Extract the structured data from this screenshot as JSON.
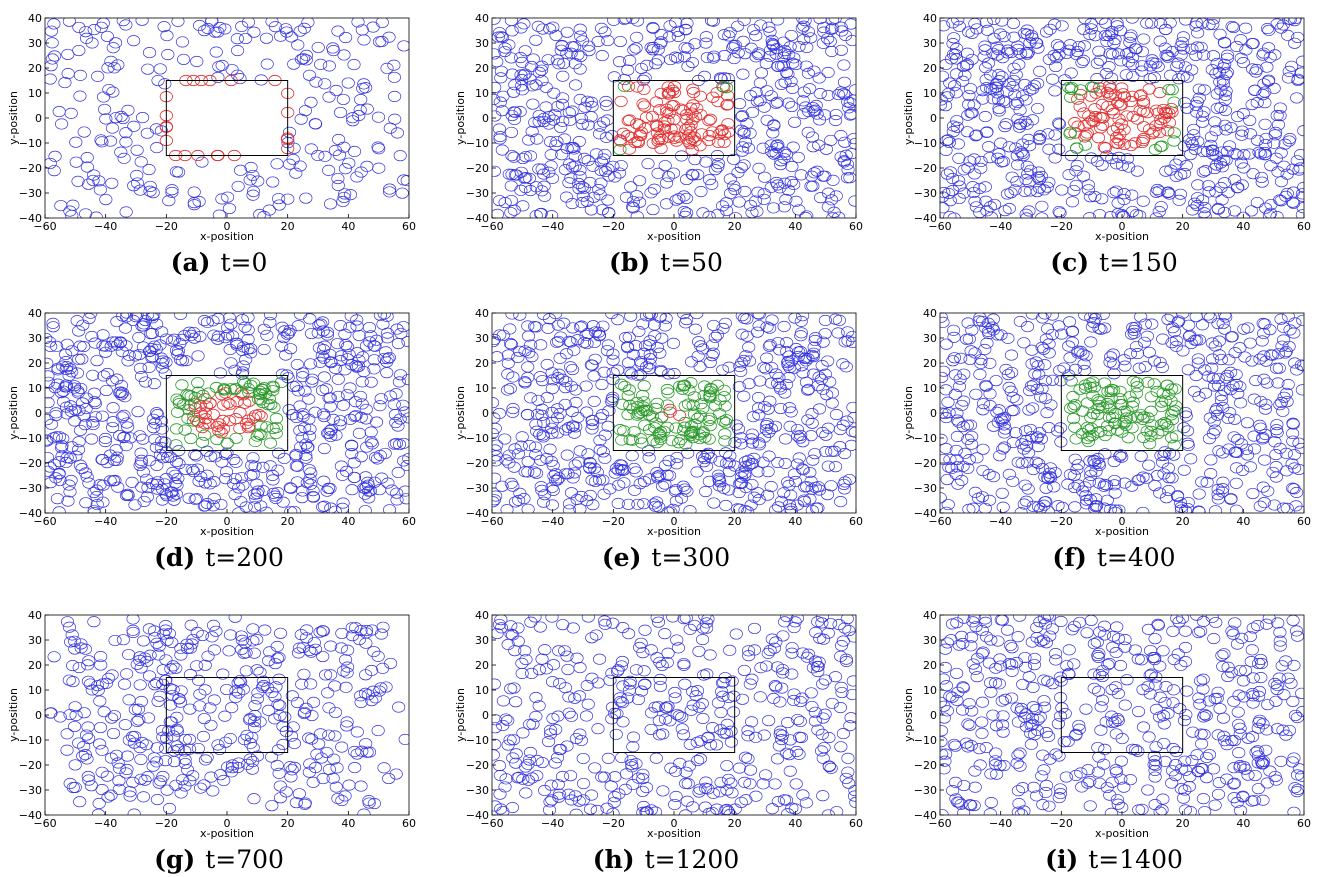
{
  "colors": {
    "outside": "#3333dd",
    "inside_initial": "#e03030",
    "inside_settled": "#2a9a2a",
    "region": "#000000"
  },
  "chart_data": [
    {
      "type": "scatter",
      "panel": "(a)",
      "caption": "t=0",
      "xlabel": "x-position",
      "ylabel": "y-position",
      "xlim": [
        -60,
        60
      ],
      "ylim": [
        -40,
        40
      ],
      "xticks": [
        "−60",
        "−40",
        "−20",
        "0",
        "20",
        "40",
        "60"
      ],
      "yticks": [
        "−40",
        "−30",
        "−20",
        "−10",
        "0",
        "10",
        "20",
        "30",
        "40"
      ],
      "region": {
        "x": [
          -20,
          20
        ],
        "y": [
          -15,
          15
        ]
      },
      "approx_particles": {
        "outside": 260,
        "inside_red": 22,
        "inside_green": 0,
        "inside_mode": "border"
      }
    },
    {
      "type": "scatter",
      "panel": "(b)",
      "caption": "t=50",
      "xlabel": "x-position",
      "ylabel": "y-position",
      "xlim": [
        -60,
        60
      ],
      "ylim": [
        -40,
        40
      ],
      "xticks": [
        "−60",
        "−40",
        "−20",
        "0",
        "20",
        "40",
        "60"
      ],
      "yticks": [
        "−40",
        "−30",
        "−20",
        "−10",
        "0",
        "10",
        "20",
        "30",
        "40"
      ],
      "region": {
        "x": [
          -20,
          20
        ],
        "y": [
          -15,
          15
        ]
      },
      "approx_particles": {
        "outside": 560,
        "inside_red": 110,
        "inside_green": 4,
        "inside_mode": "fill"
      }
    },
    {
      "type": "scatter",
      "panel": "(c)",
      "caption": "t=150",
      "xlabel": "x-position",
      "ylabel": "y-position",
      "xlim": [
        -60,
        60
      ],
      "ylim": [
        -40,
        40
      ],
      "xticks": [
        "−60",
        "−40",
        "−20",
        "0",
        "20",
        "40",
        "60"
      ],
      "yticks": [
        "−40",
        "−30",
        "−20",
        "−10",
        "0",
        "10",
        "20",
        "30",
        "40"
      ],
      "region": {
        "x": [
          -20,
          20
        ],
        "y": [
          -15,
          15
        ]
      },
      "approx_particles": {
        "outside": 620,
        "inside_red": 95,
        "inside_green": 20,
        "inside_mode": "fill"
      }
    },
    {
      "type": "scatter",
      "panel": "(d)",
      "caption": "t=200",
      "xlabel": "x-position",
      "ylabel": "y-position",
      "xlim": [
        -60,
        60
      ],
      "ylim": [
        -40,
        40
      ],
      "xticks": [
        "−60",
        "−40",
        "−20",
        "0",
        "20",
        "40",
        "60"
      ],
      "yticks": [
        "−40",
        "−30",
        "−20",
        "−10",
        "0",
        "10",
        "20",
        "30",
        "40"
      ],
      "region": {
        "x": [
          -20,
          20
        ],
        "y": [
          -15,
          15
        ]
      },
      "approx_particles": {
        "outside": 640,
        "inside_red": 45,
        "inside_green": 70,
        "inside_mode": "fill"
      }
    },
    {
      "type": "scatter",
      "panel": "(e)",
      "caption": "t=300",
      "xlabel": "x-position",
      "ylabel": "y-position",
      "xlim": [
        -60,
        60
      ],
      "ylim": [
        -40,
        40
      ],
      "xticks": [
        "−60",
        "−40",
        "−20",
        "0",
        "20",
        "40",
        "60"
      ],
      "yticks": [
        "−40",
        "−30",
        "−20",
        "−10",
        "0",
        "10",
        "20",
        "30",
        "40"
      ],
      "region": {
        "x": [
          -20,
          20
        ],
        "y": [
          -15,
          15
        ]
      },
      "approx_particles": {
        "outside": 600,
        "inside_red": 4,
        "inside_green": 110,
        "inside_mode": "fill"
      }
    },
    {
      "type": "scatter",
      "panel": "(f)",
      "caption": "t=400",
      "xlabel": "x-position",
      "ylabel": "y-position",
      "xlim": [
        -60,
        60
      ],
      "ylim": [
        -40,
        40
      ],
      "xticks": [
        "−60",
        "−40",
        "−20",
        "0",
        "20",
        "40",
        "60"
      ],
      "yticks": [
        "−40",
        "−30",
        "−20",
        "−10",
        "0",
        "10",
        "20",
        "30",
        "40"
      ],
      "region": {
        "x": [
          -20,
          20
        ],
        "y": [
          -15,
          15
        ]
      },
      "approx_particles": {
        "outside": 560,
        "inside_red": 0,
        "inside_green": 115,
        "inside_mode": "fill"
      }
    },
    {
      "type": "scatter",
      "panel": "(g)",
      "caption": "t=700",
      "xlabel": "x-position",
      "ylabel": "y-position",
      "xlim": [
        -60,
        60
      ],
      "ylim": [
        -40,
        40
      ],
      "xticks": [
        "−60",
        "−40",
        "−20",
        "0",
        "20",
        "40",
        "60"
      ],
      "yticks": [
        "−40",
        "−30",
        "−20",
        "−10",
        "0",
        "10",
        "20",
        "30",
        "40"
      ],
      "region": {
        "x": [
          -20,
          20
        ],
        "y": [
          -15,
          15
        ]
      },
      "approx_particles": {
        "outside": 440,
        "inside_red": 0,
        "inside_green": 0,
        "inside_mode": "none"
      }
    },
    {
      "type": "scatter",
      "panel": "(h)",
      "caption": "t=1200",
      "xlabel": "x-position",
      "ylabel": "y-position",
      "xlim": [
        -60,
        60
      ],
      "ylim": [
        -40,
        40
      ],
      "xticks": [
        "−60",
        "−40",
        "−20",
        "0",
        "20",
        "40",
        "60"
      ],
      "yticks": [
        "−40",
        "−30",
        "−20",
        "−10",
        "0",
        "10",
        "20",
        "30",
        "40"
      ],
      "region": {
        "x": [
          -20,
          20
        ],
        "y": [
          -15,
          15
        ]
      },
      "approx_particles": {
        "outside": 470,
        "inside_red": 0,
        "inside_green": 0,
        "inside_mode": "none"
      }
    },
    {
      "type": "scatter",
      "panel": "(i)",
      "caption": "t=1400",
      "xlabel": "x-position",
      "ylabel": "y-position",
      "xlim": [
        -60,
        60
      ],
      "ylim": [
        -40,
        40
      ],
      "xticks": [
        "−60",
        "−40",
        "−20",
        "0",
        "20",
        "40",
        "60"
      ],
      "yticks": [
        "−40",
        "−30",
        "−20",
        "−10",
        "0",
        "10",
        "20",
        "30",
        "40"
      ],
      "region": {
        "x": [
          -20,
          20
        ],
        "y": [
          -15,
          15
        ]
      },
      "approx_particles": {
        "outside": 520,
        "inside_red": 0,
        "inside_green": 0,
        "inside_mode": "none"
      }
    }
  ]
}
